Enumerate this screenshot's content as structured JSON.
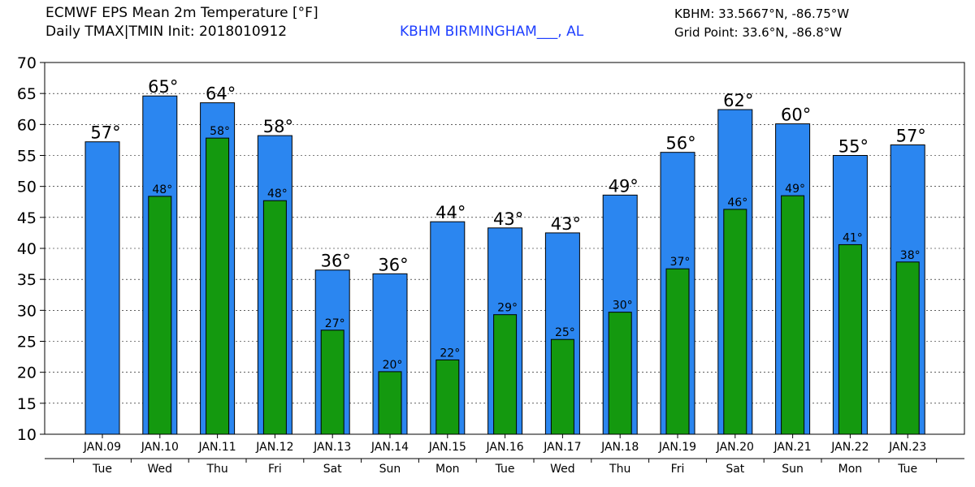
{
  "header": {
    "title_line1": "ECMWF EPS Mean 2m Temperature [°F]",
    "title_line2": "Daily TMAX|TMIN Init: 2018010912",
    "station": "KBHM BIRMINGHAM___, AL",
    "station_coords": "KBHM: 33.5667°N, -86.75°W",
    "grid_point": "Grid Point: 33.6°N, -86.8°W"
  },
  "colors": {
    "tmax": "#2b86f0",
    "tmin": "#14990f",
    "bar_outline": "#000000",
    "station_text": "#1f3fff"
  },
  "chart_data": {
    "type": "bar",
    "categories": [
      "JAN.09",
      "JAN.10",
      "JAN.11",
      "JAN.12",
      "JAN.13",
      "JAN.14",
      "JAN.15",
      "JAN.16",
      "JAN.17",
      "JAN.18",
      "JAN.19",
      "JAN.20",
      "JAN.21",
      "JAN.22",
      "JAN.23"
    ],
    "weekdays": [
      "Tue",
      "Wed",
      "Thu",
      "Fri",
      "Sat",
      "Sun",
      "Mon",
      "Tue",
      "Wed",
      "Thu",
      "Fri",
      "Sat",
      "Sun",
      "Mon",
      "Tue"
    ],
    "series": [
      {
        "key": "tmax",
        "values": [
          57.2,
          64.6,
          63.5,
          58.2,
          36.5,
          35.9,
          44.3,
          43.3,
          42.5,
          48.6,
          55.5,
          62.4,
          60.1,
          55.0,
          56.7
        ],
        "labels": [
          "57°",
          "65°",
          "64°",
          "58°",
          "36°",
          "36°",
          "44°",
          "43°",
          "43°",
          "49°",
          "56°",
          "62°",
          "60°",
          "55°",
          "57°"
        ]
      },
      {
        "key": "tmin",
        "values": [
          null,
          48.4,
          57.8,
          47.7,
          26.8,
          20.1,
          22.0,
          29.3,
          25.3,
          29.7,
          36.7,
          46.3,
          48.5,
          40.6,
          37.8
        ],
        "labels": [
          "",
          "48°",
          "58°",
          "48°",
          "27°",
          "20°",
          "22°",
          "29°",
          "25°",
          "30°",
          "37°",
          "46°",
          "49°",
          "41°",
          "38°"
        ]
      }
    ],
    "title": "ECMWF EPS Mean 2m Temperature [°F]",
    "xlabel": "",
    "ylabel": "",
    "ylim": [
      10,
      70
    ],
    "yticks": [
      10,
      15,
      20,
      25,
      30,
      35,
      40,
      45,
      50,
      55,
      60,
      65,
      70
    ],
    "grid": true
  }
}
